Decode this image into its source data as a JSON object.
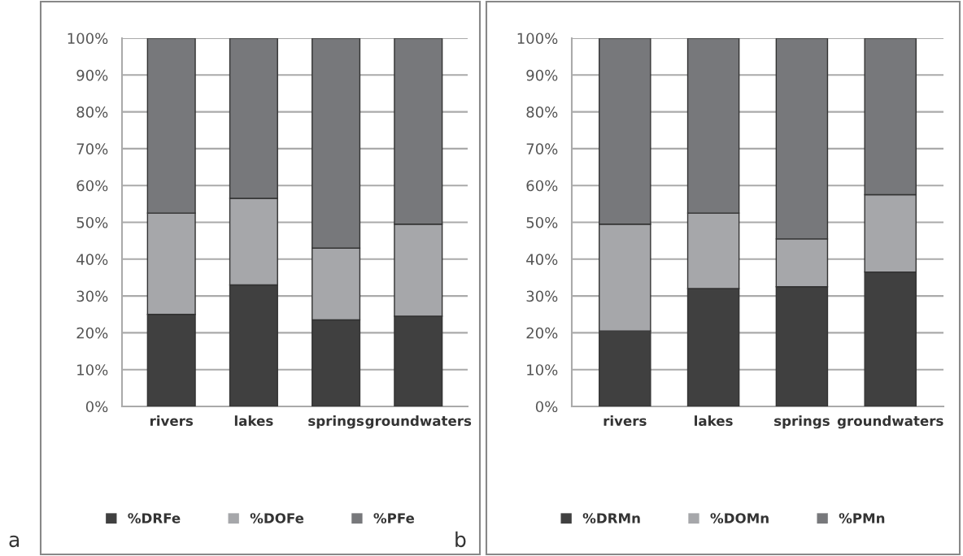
{
  "chart_data": [
    {
      "type": "bar",
      "stacked": true,
      "categories": [
        "rivers",
        "lakes",
        "springs",
        "groundwaters"
      ],
      "series": [
        {
          "name": "%DRFe",
          "color": "#404040",
          "values": [
            25,
            33,
            23.5,
            24.5
          ]
        },
        {
          "name": "%DOFe",
          "color": "#a6a7aa",
          "values": [
            27.5,
            23.5,
            19.5,
            25
          ]
        },
        {
          "name": "%PFe",
          "color": "#77787b",
          "values": [
            47.5,
            43.5,
            57,
            50.5
          ]
        }
      ],
      "ylim": [
        0,
        100
      ],
      "yticks": [
        {
          "value": 0,
          "label": "0%"
        },
        {
          "value": 10,
          "label": "10%"
        },
        {
          "value": 20,
          "label": "20%"
        },
        {
          "value": 30,
          "label": "30%"
        },
        {
          "value": 40,
          "label": "40%"
        },
        {
          "value": 50,
          "label": "50%"
        },
        {
          "value": 60,
          "label": "60%"
        },
        {
          "value": 70,
          "label": "70%"
        },
        {
          "value": 80,
          "label": "80%"
        },
        {
          "value": 90,
          "label": "90%"
        },
        {
          "value": 100,
          "label": "100%"
        }
      ],
      "grid": "y",
      "legend": "bottom",
      "annotations": [
        "a"
      ]
    },
    {
      "type": "bar",
      "stacked": true,
      "categories": [
        "rivers",
        "lakes",
        "springs",
        "groundwaters"
      ],
      "series": [
        {
          "name": "%DRMn",
          "color": "#404040",
          "values": [
            20.5,
            32,
            32.5,
            36.5
          ]
        },
        {
          "name": "%DOMn",
          "color": "#a6a7aa",
          "values": [
            29,
            20.5,
            13,
            21
          ]
        },
        {
          "name": "%PMn",
          "color": "#77787b",
          "values": [
            50.5,
            47.5,
            54.5,
            42.5
          ]
        }
      ],
      "ylim": [
        0,
        100
      ],
      "yticks": [
        {
          "value": 0,
          "label": "0%"
        },
        {
          "value": 10,
          "label": "10%"
        },
        {
          "value": 20,
          "label": "20%"
        },
        {
          "value": 30,
          "label": "30%"
        },
        {
          "value": 40,
          "label": "40%"
        },
        {
          "value": 50,
          "label": "50%"
        },
        {
          "value": 60,
          "label": "60%"
        },
        {
          "value": 70,
          "label": "70%"
        },
        {
          "value": 80,
          "label": "80%"
        },
        {
          "value": 90,
          "label": "90%"
        },
        {
          "value": 100,
          "label": "100%"
        }
      ],
      "grid": "y",
      "legend": "bottom",
      "annotations": [
        "b"
      ]
    }
  ]
}
